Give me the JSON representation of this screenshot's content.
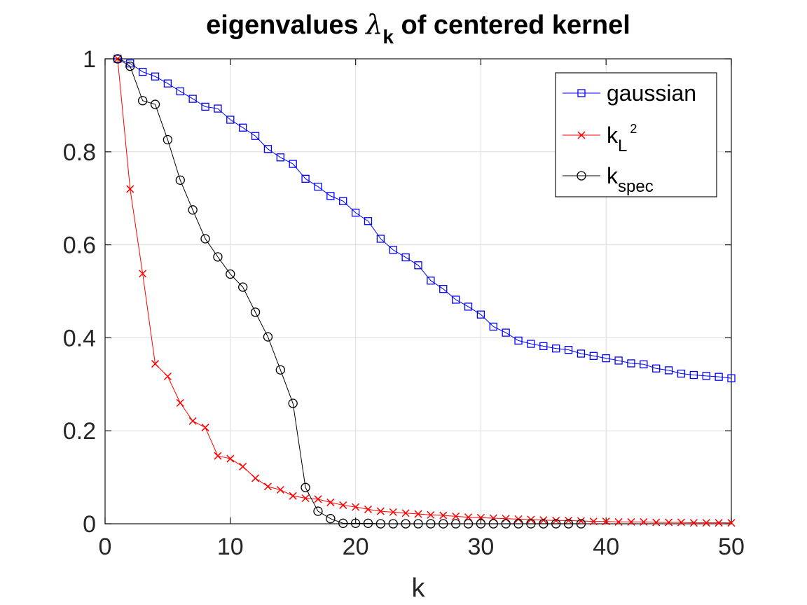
{
  "chart_data": {
    "type": "line",
    "title": {
      "prefix": "eigenvalues ",
      "symbol": "λ",
      "subscript": "k",
      "suffix": " of centered kernel"
    },
    "xlabel": "k",
    "ylabel": "",
    "xlim": [
      0,
      50
    ],
    "ylim": [
      0,
      1
    ],
    "xticks": [
      0,
      10,
      20,
      30,
      40,
      50
    ],
    "xtick_labels": [
      "0",
      "10",
      "20",
      "30",
      "40",
      "50"
    ],
    "yticks": [
      0,
      0.2,
      0.4,
      0.6,
      0.8,
      1
    ],
    "ytick_labels": [
      "0",
      "0.2",
      "0.4",
      "0.6",
      "0.8",
      "1"
    ],
    "grid": true,
    "legend_position": "top-right",
    "series": [
      {
        "name": "gaussian",
        "legend_base": "gaussian",
        "legend_sub": "",
        "legend_sup": "",
        "color": "#0000ff",
        "marker": "square",
        "x": [
          1,
          2,
          3,
          4,
          5,
          6,
          7,
          8,
          9,
          10,
          11,
          12,
          13,
          14,
          15,
          16,
          17,
          18,
          19,
          20,
          21,
          22,
          23,
          24,
          25,
          26,
          27,
          28,
          29,
          30,
          31,
          32,
          33,
          34,
          35,
          36,
          37,
          38,
          39,
          40,
          41,
          42,
          43,
          44,
          45,
          46,
          47,
          48,
          49,
          50
        ],
        "values": [
          1.0,
          0.99,
          0.972,
          0.962,
          0.947,
          0.93,
          0.914,
          0.897,
          0.893,
          0.869,
          0.852,
          0.834,
          0.806,
          0.788,
          0.774,
          0.742,
          0.725,
          0.705,
          0.694,
          0.669,
          0.651,
          0.613,
          0.589,
          0.573,
          0.556,
          0.523,
          0.505,
          0.482,
          0.467,
          0.45,
          0.424,
          0.411,
          0.394,
          0.387,
          0.382,
          0.377,
          0.374,
          0.366,
          0.361,
          0.356,
          0.351,
          0.345,
          0.343,
          0.334,
          0.33,
          0.323,
          0.32,
          0.318,
          0.316,
          0.313
        ]
      },
      {
        "name": "k_L2",
        "legend_base": "k",
        "legend_sub": "L",
        "legend_sup": "2",
        "color": "#ff0000",
        "marker": "x",
        "x": [
          1,
          2,
          3,
          4,
          5,
          6,
          7,
          8,
          9,
          10,
          11,
          12,
          13,
          14,
          15,
          16,
          17,
          18,
          19,
          20,
          21,
          22,
          23,
          24,
          25,
          26,
          27,
          28,
          29,
          30,
          31,
          32,
          33,
          34,
          35,
          36,
          37,
          38,
          39,
          40,
          41,
          42,
          43,
          44,
          45,
          46,
          47,
          48,
          49,
          50
        ],
        "values": [
          1.0,
          0.72,
          0.538,
          0.344,
          0.317,
          0.26,
          0.221,
          0.207,
          0.146,
          0.14,
          0.123,
          0.098,
          0.08,
          0.073,
          0.06,
          0.055,
          0.053,
          0.046,
          0.04,
          0.036,
          0.031,
          0.027,
          0.025,
          0.023,
          0.021,
          0.019,
          0.018,
          0.016,
          0.014,
          0.013,
          0.012,
          0.011,
          0.01,
          0.009,
          0.008,
          0.007,
          0.007,
          0.006,
          0.005,
          0.005,
          0.004,
          0.004,
          0.004,
          0.003,
          0.003,
          0.003,
          0.002,
          0.002,
          0.002,
          0.002
        ]
      },
      {
        "name": "k_spec",
        "legend_base": "k",
        "legend_sub": "spec",
        "legend_sup": "",
        "color": "#000000",
        "marker": "circle",
        "x": [
          1,
          2,
          3,
          4,
          5,
          6,
          7,
          8,
          9,
          10,
          11,
          12,
          13,
          14,
          15,
          16,
          17,
          18,
          19,
          20,
          21,
          22,
          23,
          24,
          25,
          26,
          27,
          28,
          29,
          30,
          31,
          32,
          33,
          34,
          35,
          36,
          37,
          38
        ],
        "values": [
          1.0,
          0.984,
          0.91,
          0.902,
          0.826,
          0.739,
          0.675,
          0.613,
          0.574,
          0.537,
          0.509,
          0.455,
          0.402,
          0.331,
          0.259,
          0.078,
          0.027,
          0.011,
          0.001,
          0.001,
          0.001,
          0.0,
          0.0,
          0.0,
          0.0,
          0.0,
          0.0,
          0.0,
          0.0,
          0.0,
          0.0,
          0.0,
          0.0,
          0.0,
          0.0,
          0.0,
          0.0,
          0.0
        ]
      }
    ]
  }
}
